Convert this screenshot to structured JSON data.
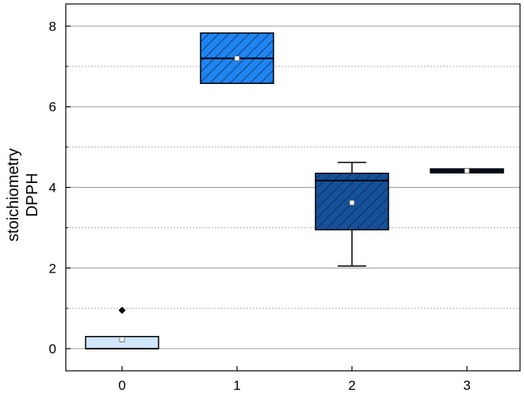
{
  "chart_data": {
    "type": "box",
    "categories": [
      "0",
      "1",
      "2",
      "3"
    ],
    "ylabel_lines": [
      "stoichiometry",
      "DPPH"
    ],
    "ylim": [
      -0.55,
      8.55
    ],
    "yticks": [
      0,
      2,
      4,
      6,
      8
    ],
    "minor_gridlines": [
      1,
      3,
      5,
      7
    ],
    "grid": true,
    "boxes": [
      {
        "category": "0",
        "q1": 0.0,
        "median": 0.0,
        "q3": 0.3,
        "whisker_low": 0.0,
        "whisker_high": 0.3,
        "mean": 0.23,
        "outliers": [
          0.95
        ],
        "color": "#cfe6fb",
        "hatch": false
      },
      {
        "category": "1",
        "q1": 6.58,
        "median": 7.2,
        "q3": 7.83,
        "whisker_low": 6.58,
        "whisker_high": 7.83,
        "mean": 7.2,
        "outliers": [],
        "color": "#1e84f2",
        "hatch": true
      },
      {
        "category": "2",
        "q1": 2.95,
        "median": 4.17,
        "q3": 4.35,
        "whisker_low": 2.05,
        "whisker_high": 4.62,
        "mean": 3.62,
        "outliers": [],
        "color": "#15519a",
        "hatch": true
      },
      {
        "category": "3",
        "q1": 4.38,
        "median": 4.41,
        "q3": 4.44,
        "whisker_low": 4.38,
        "whisker_high": 4.44,
        "mean": 4.41,
        "outliers": [],
        "color": "#0e2c52",
        "hatch": false
      }
    ]
  }
}
